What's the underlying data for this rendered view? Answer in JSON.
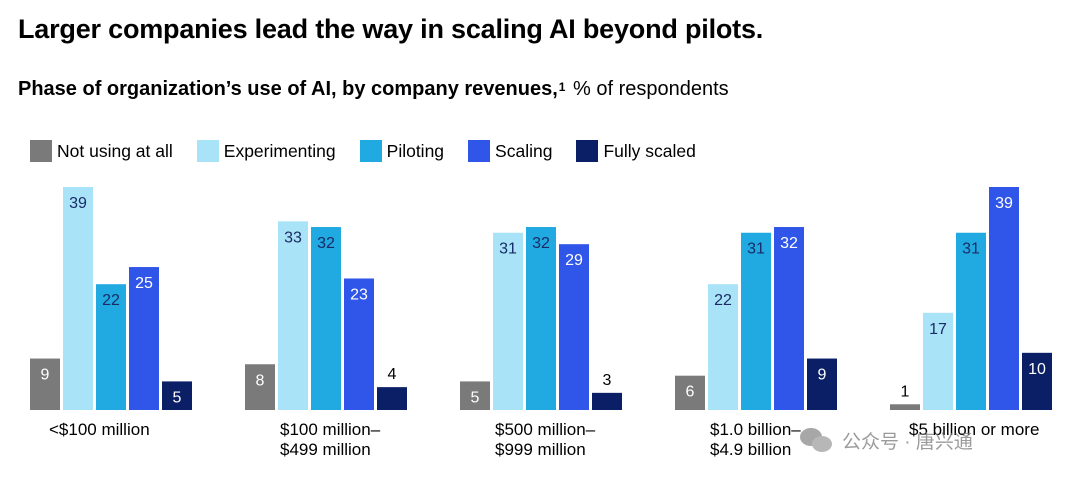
{
  "title": "Larger companies lead the way in scaling AI beyond pilots.",
  "subtitle": {
    "bold": "Phase of organization’s use of AI, by company revenues,",
    "footnote": "1",
    "rest": " % of respondents"
  },
  "watermark": {
    "icon": "wechat-icon",
    "text": "公众号 · 唐兴通"
  },
  "chart_data": {
    "type": "bar",
    "categories": [
      "<$100 million",
      "$100 million–\n$499 million",
      "$500 million–\n$999 million",
      "$1.0 billion–\n$4.9 billion",
      "$5 billion or more"
    ],
    "series": [
      {
        "name": "Not using at all",
        "color": "#7a7a7a",
        "label_color": "#ffffff",
        "values": [
          9,
          8,
          5,
          6,
          1
        ]
      },
      {
        "name": "Experimenting",
        "color": "#a9e3f7",
        "label_color": "#1a2b66",
        "values": [
          39,
          33,
          31,
          22,
          17
        ]
      },
      {
        "name": "Piloting",
        "color": "#21a9e1",
        "label_color": "#1a2b66",
        "values": [
          22,
          32,
          32,
          31,
          31
        ]
      },
      {
        "name": "Scaling",
        "color": "#2f56e8",
        "label_color": "#ffffff",
        "values": [
          25,
          23,
          29,
          32,
          39
        ]
      },
      {
        "name": "Fully scaled",
        "color": "#0b1f66",
        "label_color": "#ffffff",
        "values": [
          5,
          4,
          3,
          9,
          10
        ]
      }
    ],
    "ylim": [
      0,
      39
    ],
    "legend_position": "top-left",
    "grid": false
  }
}
